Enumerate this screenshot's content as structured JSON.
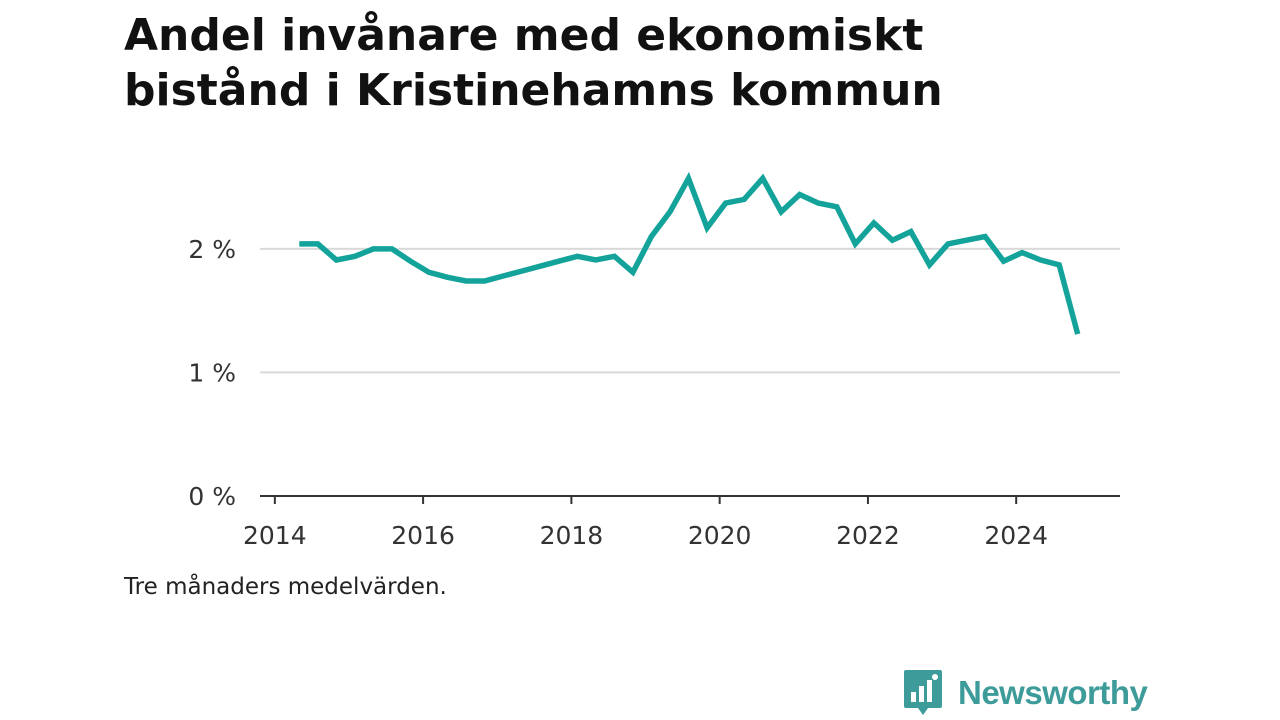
{
  "title": "Andel invånare med ekonomiskt bistånd i Kristinehamns kommun",
  "note": "Tre månaders medelvärden.",
  "brand": {
    "name": "Newsworthy",
    "icon": "newsworthy-logo-icon",
    "color": "#3d9b9a"
  },
  "chart_data": {
    "type": "line",
    "title": "Andel invånare med ekonomiskt bistånd i Kristinehamns kommun",
    "xlabel": "",
    "ylabel": "",
    "xlim": [
      2013.8,
      2025.4
    ],
    "ylim": [
      0,
      2.8
    ],
    "x_ticks": [
      2014,
      2016,
      2018,
      2020,
      2022,
      2024
    ],
    "x_tick_labels": [
      "2014",
      "2016",
      "2018",
      "2020",
      "2022",
      "2024"
    ],
    "y_ticks": [
      0,
      1,
      2
    ],
    "y_tick_labels": [
      "0 %",
      "1 %",
      "2 %"
    ],
    "grid": "horizontal",
    "line_color": "#14a39a",
    "series": [
      {
        "values": [
          [
            2014.33,
            2.04
          ],
          [
            2014.58,
            2.04
          ],
          [
            2014.83,
            1.91
          ],
          [
            2015.08,
            1.94
          ],
          [
            2015.33,
            2.0
          ],
          [
            2015.58,
            2.0
          ],
          [
            2015.83,
            1.9
          ],
          [
            2016.08,
            1.81
          ],
          [
            2016.33,
            1.77
          ],
          [
            2016.58,
            1.74
          ],
          [
            2016.83,
            1.74
          ],
          [
            2017.08,
            1.78
          ],
          [
            2017.33,
            1.82
          ],
          [
            2017.58,
            1.86
          ],
          [
            2017.83,
            1.9
          ],
          [
            2018.08,
            1.94
          ],
          [
            2018.33,
            1.91
          ],
          [
            2018.58,
            1.94
          ],
          [
            2018.83,
            1.81
          ],
          [
            2019.08,
            2.1
          ],
          [
            2019.33,
            2.3
          ],
          [
            2019.58,
            2.57
          ],
          [
            2019.83,
            2.17
          ],
          [
            2020.08,
            2.37
          ],
          [
            2020.33,
            2.4
          ],
          [
            2020.58,
            2.57
          ],
          [
            2020.83,
            2.3
          ],
          [
            2021.08,
            2.44
          ],
          [
            2021.33,
            2.37
          ],
          [
            2021.58,
            2.34
          ],
          [
            2021.83,
            2.04
          ],
          [
            2022.08,
            2.21
          ],
          [
            2022.33,
            2.07
          ],
          [
            2022.58,
            2.14
          ],
          [
            2022.83,
            1.87
          ],
          [
            2023.08,
            2.04
          ],
          [
            2023.33,
            2.07
          ],
          [
            2023.58,
            2.1
          ],
          [
            2023.83,
            1.9
          ],
          [
            2024.08,
            1.97
          ],
          [
            2024.33,
            1.91
          ],
          [
            2024.58,
            1.87
          ],
          [
            2024.83,
            1.31
          ]
        ]
      }
    ]
  }
}
